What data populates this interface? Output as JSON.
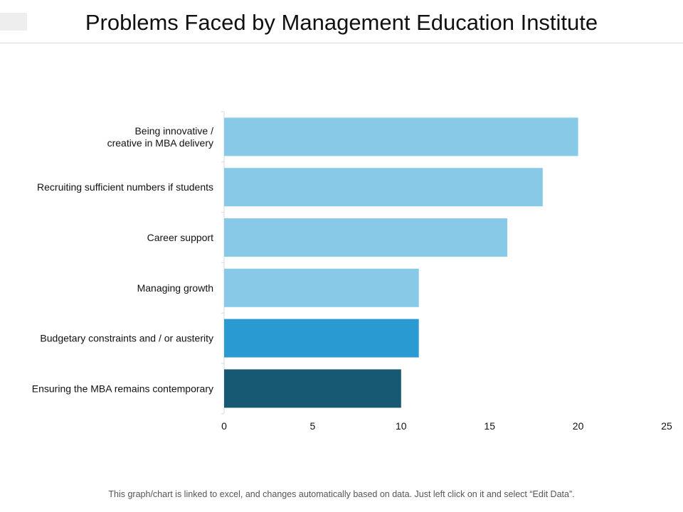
{
  "header": {
    "title": "Problems Faced by Management Education Institute"
  },
  "footer": {
    "note": "This graph/chart is linked to excel, and changes automatically based on data. Just left click on it and select “Edit Data”."
  },
  "chart_data": {
    "type": "bar",
    "orientation": "horizontal",
    "title": "",
    "xlabel": "",
    "ylabel": "",
    "xlim": [
      0,
      25
    ],
    "x_ticks": [
      0,
      5,
      10,
      15,
      20,
      25
    ],
    "grid": false,
    "legend": "none",
    "categories": [
      [
        "Being innovative /",
        "creative in MBA delivery"
      ],
      [
        "Recruiting sufficient  numbers if students"
      ],
      [
        "Career support"
      ],
      [
        "Managing growth"
      ],
      [
        "Budgetary constraints and / or austerity"
      ],
      [
        "Ensuring the MBA remains contemporary"
      ]
    ],
    "values": [
      20,
      18,
      16,
      11,
      11,
      10
    ],
    "colors": [
      "#89c9e8",
      "#89c9e8",
      "#89c9e8",
      "#89c9e8",
      "#2a9bd2",
      "#175873"
    ]
  }
}
